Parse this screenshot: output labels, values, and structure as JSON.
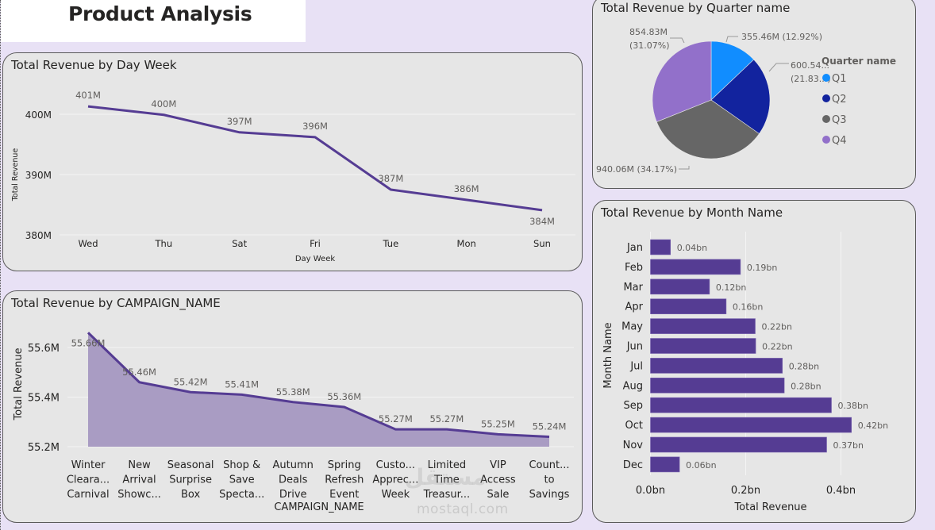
{
  "page": {
    "title": "Product Analysis",
    "background_color": "#E8E1F5",
    "accent_color": "#553C93",
    "watermark": "mostaql.com"
  },
  "chart_data": [
    {
      "id": "day_week",
      "type": "line",
      "title": "Total Revenue by Day Week",
      "xlabel": "Day Week",
      "ylabel": "Total Revenue",
      "categories": [
        "Wed",
        "Thu",
        "Sat",
        "Fri",
        "Tue",
        "Mon",
        "Sun"
      ],
      "values": [
        401.3,
        399.9,
        397.0,
        396.2,
        387.5,
        385.8,
        384.1
      ],
      "data_labels": [
        "401M",
        "400M",
        "397M",
        "396M",
        "387M",
        "386M",
        "384M"
      ],
      "y_ticks": [
        380,
        390,
        400
      ],
      "y_tick_labels": [
        "380M",
        "390M",
        "400M"
      ],
      "ylim": [
        380,
        404
      ],
      "grid": true,
      "line_color": "#553C93"
    },
    {
      "id": "campaign",
      "type": "area",
      "title": "Total Revenue by CAMPAIGN_NAME",
      "xlabel": "CAMPAIGN_NAME",
      "ylabel": "Total Revenue",
      "categories": [
        [
          "Winter",
          "Cleara...",
          "Carnival"
        ],
        [
          "New",
          "Arrival",
          "Showc..."
        ],
        [
          "Seasonal",
          "Surprise",
          "Box"
        ],
        [
          "Shop &",
          "Save",
          "Specta..."
        ],
        [
          "Autumn",
          "Deals",
          "Drive"
        ],
        [
          "Spring",
          "Refresh",
          "Event"
        ],
        [
          "Custo...",
          "Apprec...",
          "Week"
        ],
        [
          "Limited",
          "Time",
          "Treasur..."
        ],
        [
          "VIP",
          "Access",
          "Sale"
        ],
        [
          "Count...",
          "to",
          "Savings"
        ]
      ],
      "values": [
        55.66,
        55.46,
        55.42,
        55.41,
        55.38,
        55.36,
        55.27,
        55.27,
        55.25,
        55.24
      ],
      "data_labels": [
        "55.66M",
        "55.46M",
        "55.42M",
        "55.41M",
        "55.38M",
        "55.36M",
        "55.27M",
        "55.27M",
        "55.25M",
        "55.24M"
      ],
      "y_ticks": [
        55.2,
        55.4,
        55.6
      ],
      "y_tick_labels": [
        "55.2M",
        "55.4M",
        "55.6M"
      ],
      "ylim": [
        55.2,
        55.7
      ],
      "grid": true,
      "line_color": "#553C93",
      "fill_color": "#A99CC3"
    },
    {
      "id": "quarter",
      "type": "pie",
      "title": "Total Revenue by Quarter name",
      "legend_title": "Quarter name",
      "legend_position": "right",
      "slices": [
        {
          "name": "Q1",
          "value": 355.46,
          "percent": 12.92,
          "label": "355.46M (12.92%)",
          "color": "#118DFF"
        },
        {
          "name": "Q2",
          "value": 600.54,
          "percent": 21.83,
          "label": "600.54...|(21.83...)",
          "color": "#12239E"
        },
        {
          "name": "Q3",
          "value": 940.06,
          "percent": 34.17,
          "label": "940.06M (34.17%)",
          "color": "#666666"
        },
        {
          "name": "Q4",
          "value": 854.83,
          "percent": 31.07,
          "label": "854.83M|(31.07%)",
          "color": "#9270CA"
        }
      ]
    },
    {
      "id": "month",
      "type": "bar",
      "orientation": "horizontal",
      "title": "Total Revenue by Month Name",
      "xlabel": "Total Revenue",
      "ylabel": "Month Name",
      "categories": [
        "Jan",
        "Feb",
        "Mar",
        "Apr",
        "May",
        "Jun",
        "Jul",
        "Aug",
        "Sep",
        "Oct",
        "Nov",
        "Dec"
      ],
      "values": [
        0.042,
        0.189,
        0.124,
        0.159,
        0.22,
        0.221,
        0.277,
        0.281,
        0.38,
        0.422,
        0.37,
        0.061
      ],
      "data_labels": [
        "0.04bn",
        "0.19bn",
        "0.12bn",
        "0.16bn",
        "0.22bn",
        "0.22bn",
        "0.28bn",
        "0.28bn",
        "0.38bn",
        "0.42bn",
        "0.37bn",
        "0.06bn"
      ],
      "x_ticks": [
        0,
        0.2,
        0.4
      ],
      "x_tick_labels": [
        "0.0bn",
        "0.2bn",
        "0.4bn"
      ],
      "xlim": [
        0,
        0.5
      ],
      "grid": true,
      "bar_color": "#553C93"
    }
  ]
}
